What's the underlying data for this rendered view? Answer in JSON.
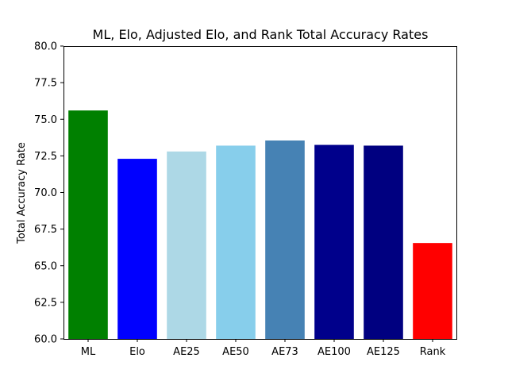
{
  "chart_data": {
    "type": "bar",
    "title": "ML, Elo, Adjusted Elo, and Rank Total Accuracy Rates",
    "xlabel": "",
    "ylabel": "Total Accuracy Rate",
    "ylim": [
      60.0,
      80.0
    ],
    "yticks": [
      "60.0",
      "62.5",
      "65.0",
      "67.5",
      "70.0",
      "72.5",
      "75.0",
      "77.5",
      "80.0"
    ],
    "categories": [
      "ML",
      "Elo",
      "AE25",
      "AE50",
      "AE73",
      "AE100",
      "AE125",
      "Rank"
    ],
    "values": [
      75.6,
      72.3,
      72.8,
      73.2,
      73.55,
      73.25,
      73.2,
      66.55
    ],
    "colors": [
      "#008000",
      "#0000ff",
      "#add8e6",
      "#87ceeb",
      "#4682b4",
      "#00008b",
      "#000080",
      "#ff0000"
    ],
    "grid": false,
    "legend": "none"
  }
}
